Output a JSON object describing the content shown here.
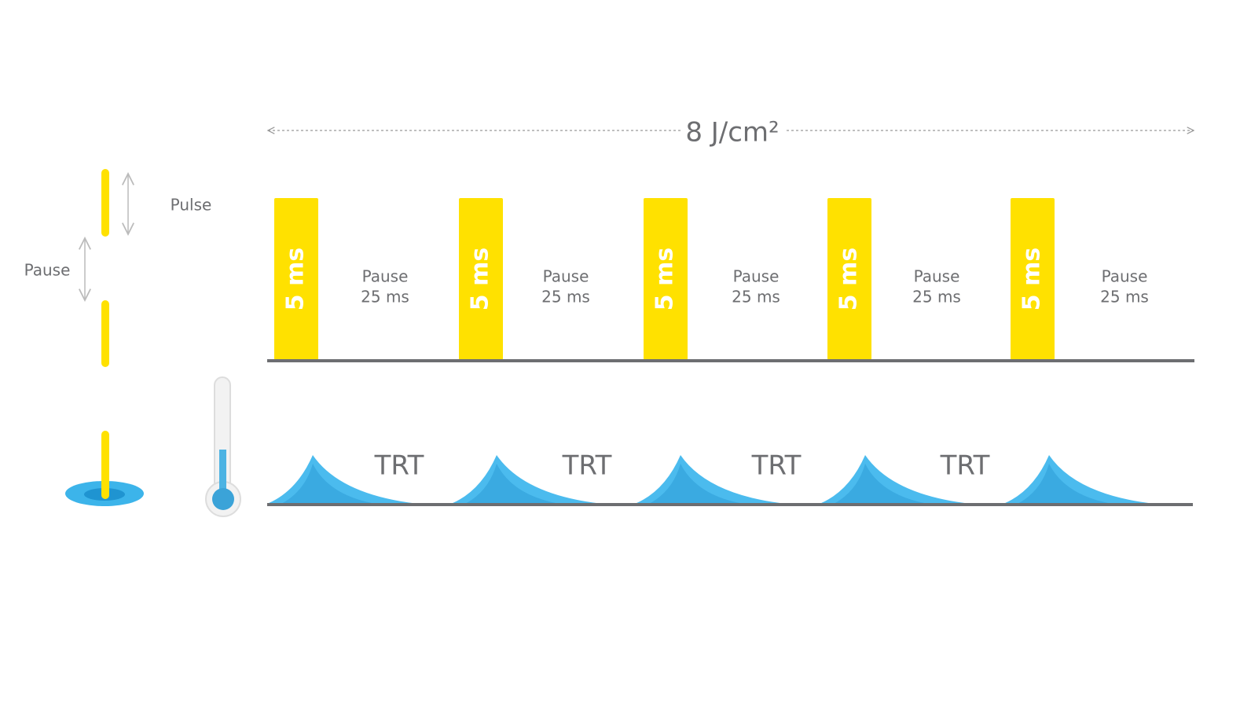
{
  "header": {
    "energy": "8 J/cm²"
  },
  "legend": {
    "pulse": "Pulse",
    "pause": "Pause"
  },
  "pulses": [
    {
      "label": "5 ms"
    },
    {
      "label": "5 ms"
    },
    {
      "label": "5 ms"
    },
    {
      "label": "5 ms"
    },
    {
      "label": "5 ms"
    }
  ],
  "pauses": [
    {
      "title": "Pause",
      "duration": "25 ms"
    },
    {
      "title": "Pause",
      "duration": "25 ms"
    },
    {
      "title": "Pause",
      "duration": "25 ms"
    },
    {
      "title": "Pause",
      "duration": "25 ms"
    },
    {
      "title": "Pause",
      "duration": "25 ms"
    }
  ],
  "trt": [
    "TRT",
    "TRT",
    "TRT",
    "TRT"
  ]
}
